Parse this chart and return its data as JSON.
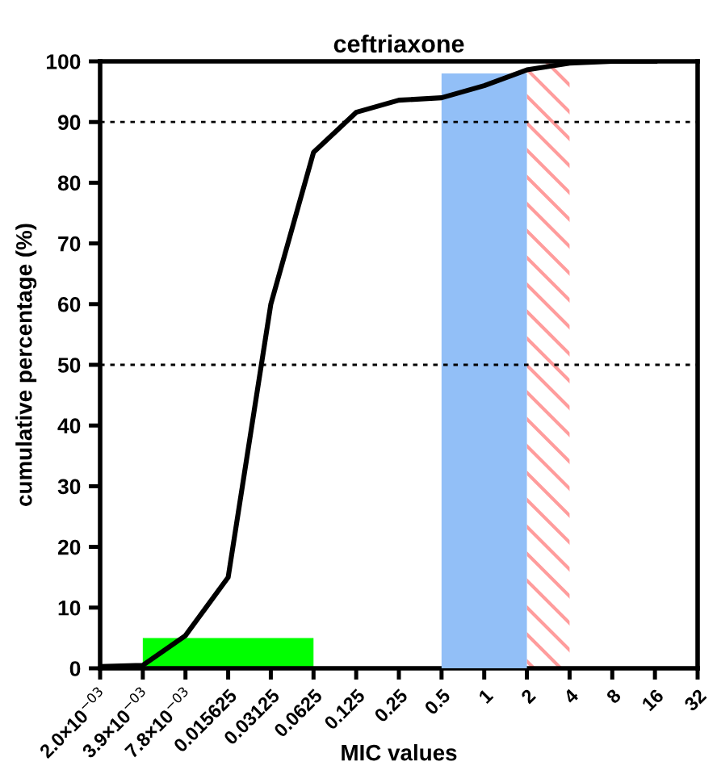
{
  "chart_data": {
    "type": "line",
    "title": "ceftriaxone",
    "xlabel": "MIC values",
    "ylabel": "cumulative percentage (%)",
    "categories": [
      "2.0×10$^{−03}$",
      "3.9×10$^{−03}$",
      "7.8×10$^{−03}$",
      "0.015625",
      "0.03125",
      "0.0625",
      "0.125",
      "0.25",
      "0.5",
      "1",
      "2",
      "4",
      "8",
      "16",
      "32"
    ],
    "series": [
      {
        "type": "area",
        "color": "#00ff00",
        "values": [
          null,
          5,
          5,
          5,
          5,
          5,
          null,
          null,
          null,
          null,
          null,
          null,
          null,
          null,
          null
        ]
      },
      {
        "type": "area",
        "color": "#92bff7",
        "values": [
          null,
          null,
          null,
          null,
          null,
          null,
          null,
          null,
          98,
          98,
          98,
          null,
          null,
          null,
          null
        ]
      },
      {
        "color": "#000000",
        "values": [
          0.3,
          0.5,
          5.4,
          15,
          60,
          85,
          91.6,
          93.6,
          94,
          96,
          98.6,
          99.7,
          100,
          100,
          null
        ]
      }
    ],
    "ylim": [
      0,
      100
    ],
    "yticks": [
      0,
      10,
      20,
      30,
      40,
      50,
      60,
      70,
      80,
      90,
      100
    ],
    "bands": [
      {
        "axis": "x",
        "from": "2",
        "to": "4",
        "color": "#ff9c9c"
      }
    ],
    "ref_lines": [
      {
        "axis": "y",
        "value": 50,
        "color": "#000000",
        "line_style": "dotted"
      },
      {
        "axis": "y",
        "value": 90,
        "color": "#000000",
        "line_style": "dotted"
      }
    ],
    "grid": false,
    "legend": false,
    "marker": "none"
  }
}
